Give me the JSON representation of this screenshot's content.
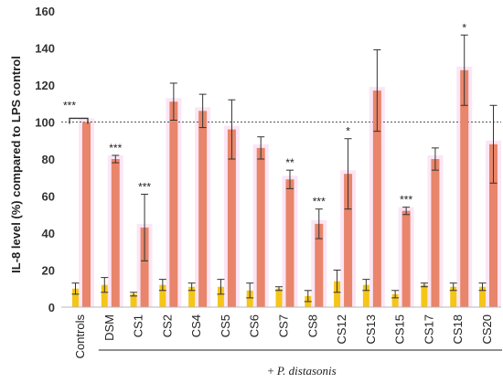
{
  "chart_data": {
    "type": "bar",
    "categories": [
      "Controls",
      "DSM",
      "CS1",
      "CS2",
      "CS4",
      "CS5",
      "CS6",
      "CS7",
      "CS8",
      "CS12",
      "CS13",
      "CS15",
      "CS17",
      "CS18",
      "CS20"
    ],
    "series": [
      {
        "values": [
          10,
          12,
          7,
          12,
          11,
          11,
          9,
          10,
          6,
          14,
          12,
          7,
          12,
          11,
          11
        ],
        "errors": [
          3,
          4,
          1,
          3,
          2,
          4,
          4,
          1,
          3,
          6,
          3,
          2,
          1,
          2,
          2
        ],
        "color": "#f5c518"
      },
      {
        "values": [
          100,
          80,
          43,
          111,
          106,
          96,
          86,
          69,
          45,
          72,
          117,
          52,
          80,
          128,
          88
        ],
        "errors": [
          0,
          2,
          18,
          10,
          9,
          16,
          6,
          5,
          8,
          19,
          22,
          2,
          6,
          19,
          21
        ],
        "color": "#e8856a"
      }
    ],
    "significance": [
      "***",
      "***",
      "***",
      "",
      "",
      "",
      "",
      "**",
      "***",
      "*",
      "",
      "***",
      "",
      "*",
      ""
    ],
    "ylabel": "IL-8 level (%) compared to LPS control",
    "yticks": [
      0,
      20,
      40,
      60,
      80,
      100,
      120,
      140,
      160
    ],
    "ylim": [
      0,
      160
    ],
    "reference_line": 100,
    "group_label": "+ P. distasonis",
    "group_label_plain": "+ ",
    "group_label_italic": "P. distasonis",
    "colors": {
      "series_a": "#f5c518",
      "series_b": "#e8856a",
      "halo": "#f7d2ec",
      "axis": "#b8b8b8"
    }
  }
}
